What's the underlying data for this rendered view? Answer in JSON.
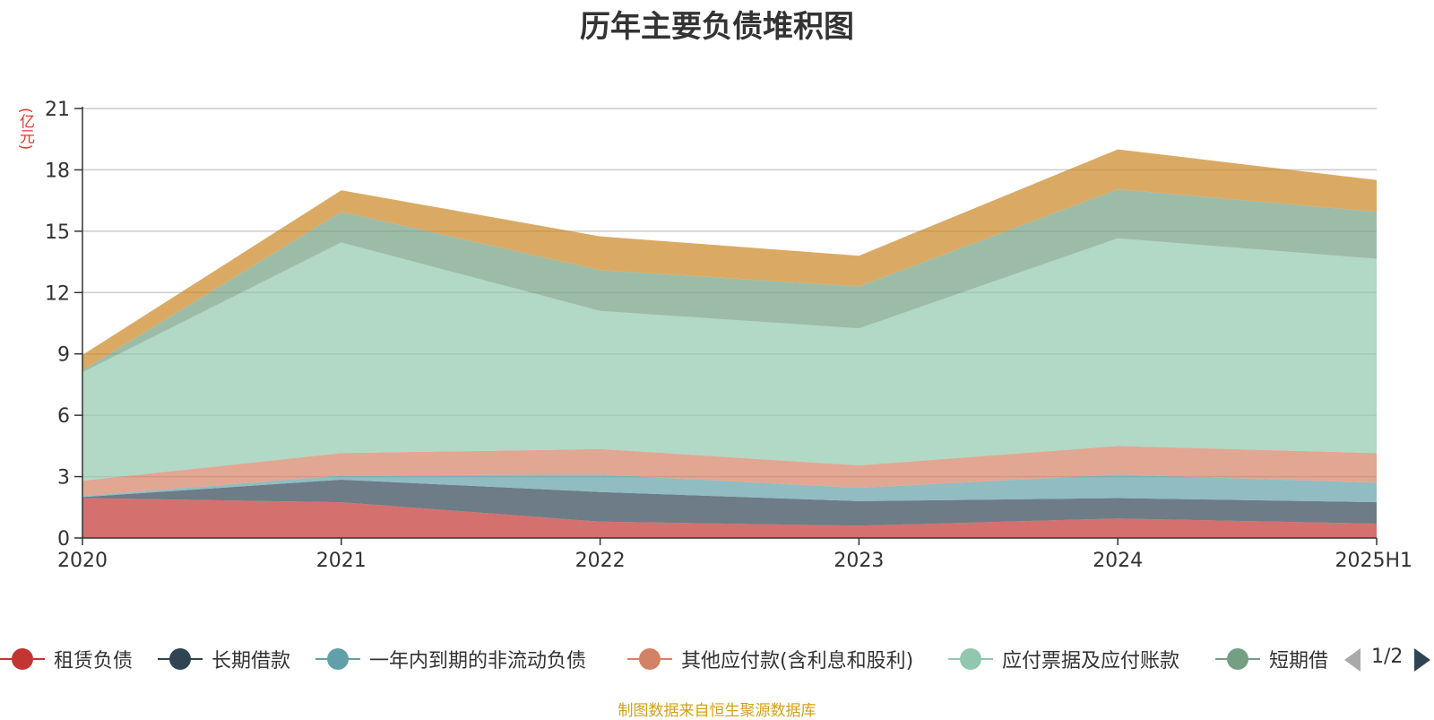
{
  "chart_data": {
    "type": "area",
    "stacked": true,
    "title": "历年主要负债堆积图",
    "ylabel": "(亿元)",
    "xlabel": "",
    "categories": [
      "2020",
      "2021",
      "2022",
      "2023",
      "2024",
      "2025H1"
    ],
    "ylim": [
      0,
      21
    ],
    "yticks": [
      0,
      3,
      6,
      9,
      12,
      15,
      18,
      21
    ],
    "grid": true,
    "legend_position": "bottom",
    "series": [
      {
        "name": "租赁负债",
        "color": "#c23531",
        "values": [
          1.95,
          1.75,
          0.8,
          0.6,
          0.95,
          0.7
        ]
      },
      {
        "name": "长期借款",
        "color": "#2f4554",
        "values": [
          0.05,
          1.1,
          1.45,
          1.2,
          1.0,
          1.05
        ]
      },
      {
        "name": "一年内到期的非流动负债",
        "color": "#61a0a8",
        "values": [
          0.05,
          0.2,
          0.85,
          0.65,
          1.15,
          0.95
        ]
      },
      {
        "name": "其他应付款(含利息和股利)",
        "color": "#d48265",
        "values": [
          0.75,
          1.1,
          1.25,
          1.1,
          1.4,
          1.45
        ]
      },
      {
        "name": "应付票据及应付账款",
        "color": "#91c7ae",
        "values": [
          5.3,
          10.3,
          6.75,
          6.7,
          10.15,
          9.5
        ]
      },
      {
        "name": "短期借款",
        "color": "#749f83",
        "values": [
          0.1,
          1.5,
          2.0,
          2.05,
          2.4,
          2.3
        ]
      },
      {
        "name": "",
        "color": "#ca8622",
        "values": [
          0.75,
          1.05,
          1.65,
          1.5,
          1.95,
          1.55
        ]
      }
    ]
  },
  "legend": {
    "page_indicator": "1/2",
    "visible_items": [
      "租赁负债",
      "长期借款",
      "一年内到期的非流动负债",
      "其他应付款(含利息和股利)",
      "应付票据及应付账款",
      "短期借款"
    ]
  },
  "footer": {
    "source": "制图数据来自恒生聚源数据库"
  }
}
